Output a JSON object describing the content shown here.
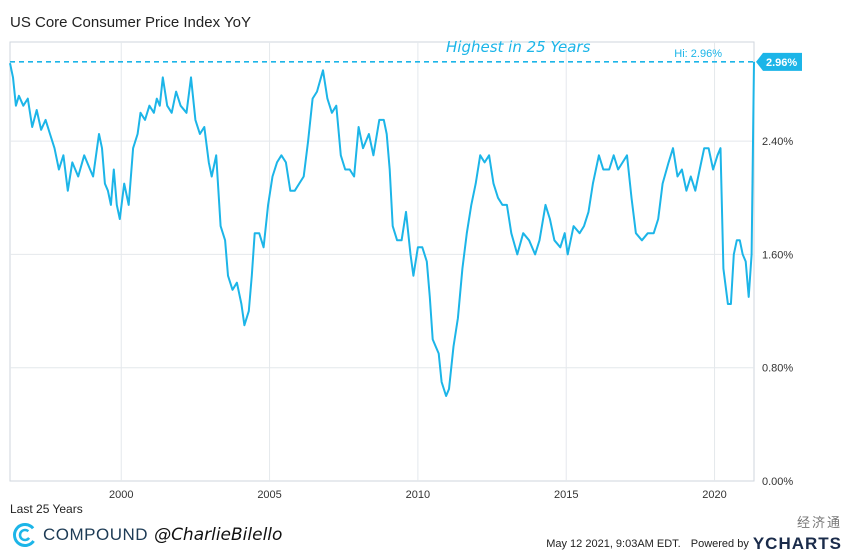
{
  "chart_data": {
    "type": "line",
    "title": "US Core Consumer Price Index YoY",
    "period_label": "Last 25 Years",
    "annotation": "Highest in 25 Years",
    "hi_label": "Hi: 2.96%",
    "last_value_label": "2.96%",
    "hi_value": 2.96,
    "line_color": "#1cb5e8",
    "xlim": [
      1996.25,
      2021.33
    ],
    "ylim": [
      0,
      3.1
    ],
    "x_ticks": [
      2000,
      2005,
      2010,
      2015,
      2020
    ],
    "y_ticks": [
      0,
      0.8,
      1.6,
      2.4
    ],
    "y_tick_labels": [
      "0.00%",
      "0.80%",
      "1.60%",
      "2.40%"
    ],
    "series": [
      {
        "values": [
          [
            1996.25,
            2.95
          ],
          [
            1996.35,
            2.85
          ],
          [
            1996.45,
            2.65
          ],
          [
            1996.55,
            2.72
          ],
          [
            1996.7,
            2.65
          ],
          [
            1996.85,
            2.7
          ],
          [
            1997.0,
            2.5
          ],
          [
            1997.15,
            2.62
          ],
          [
            1997.3,
            2.48
          ],
          [
            1997.45,
            2.55
          ],
          [
            1997.6,
            2.45
          ],
          [
            1997.75,
            2.35
          ],
          [
            1997.9,
            2.2
          ],
          [
            1998.05,
            2.3
          ],
          [
            1998.2,
            2.05
          ],
          [
            1998.35,
            2.25
          ],
          [
            1998.55,
            2.15
          ],
          [
            1998.75,
            2.3
          ],
          [
            1998.95,
            2.2
          ],
          [
            1999.05,
            2.15
          ],
          [
            1999.25,
            2.45
          ],
          [
            1999.35,
            2.35
          ],
          [
            1999.45,
            2.1
          ],
          [
            1999.55,
            2.05
          ],
          [
            1999.65,
            1.95
          ],
          [
            1999.75,
            2.2
          ],
          [
            1999.85,
            1.95
          ],
          [
            1999.95,
            1.85
          ],
          [
            2000.1,
            2.1
          ],
          [
            2000.25,
            1.95
          ],
          [
            2000.4,
            2.35
          ],
          [
            2000.55,
            2.45
          ],
          [
            2000.65,
            2.6
          ],
          [
            2000.8,
            2.55
          ],
          [
            2000.95,
            2.65
          ],
          [
            2001.1,
            2.6
          ],
          [
            2001.2,
            2.7
          ],
          [
            2001.3,
            2.65
          ],
          [
            2001.4,
            2.85
          ],
          [
            2001.55,
            2.65
          ],
          [
            2001.7,
            2.6
          ],
          [
            2001.85,
            2.75
          ],
          [
            2002.0,
            2.65
          ],
          [
            2002.2,
            2.6
          ],
          [
            2002.35,
            2.85
          ],
          [
            2002.5,
            2.55
          ],
          [
            2002.65,
            2.45
          ],
          [
            2002.8,
            2.5
          ],
          [
            2002.95,
            2.25
          ],
          [
            2003.05,
            2.15
          ],
          [
            2003.2,
            2.3
          ],
          [
            2003.35,
            1.8
          ],
          [
            2003.5,
            1.7
          ],
          [
            2003.6,
            1.45
          ],
          [
            2003.75,
            1.35
          ],
          [
            2003.9,
            1.4
          ],
          [
            2004.05,
            1.25
          ],
          [
            2004.15,
            1.1
          ],
          [
            2004.3,
            1.2
          ],
          [
            2004.4,
            1.45
          ],
          [
            2004.5,
            1.75
          ],
          [
            2004.65,
            1.75
          ],
          [
            2004.8,
            1.65
          ],
          [
            2004.95,
            1.95
          ],
          [
            2005.1,
            2.15
          ],
          [
            2005.25,
            2.25
          ],
          [
            2005.4,
            2.3
          ],
          [
            2005.55,
            2.25
          ],
          [
            2005.7,
            2.05
          ],
          [
            2005.85,
            2.05
          ],
          [
            2006.0,
            2.1
          ],
          [
            2006.15,
            2.15
          ],
          [
            2006.3,
            2.4
          ],
          [
            2006.45,
            2.7
          ],
          [
            2006.6,
            2.75
          ],
          [
            2006.8,
            2.9
          ],
          [
            2006.95,
            2.7
          ],
          [
            2007.1,
            2.6
          ],
          [
            2007.25,
            2.65
          ],
          [
            2007.4,
            2.3
          ],
          [
            2007.55,
            2.2
          ],
          [
            2007.7,
            2.2
          ],
          [
            2007.85,
            2.15
          ],
          [
            2008.0,
            2.5
          ],
          [
            2008.15,
            2.35
          ],
          [
            2008.35,
            2.45
          ],
          [
            2008.5,
            2.3
          ],
          [
            2008.7,
            2.55
          ],
          [
            2008.85,
            2.55
          ],
          [
            2008.95,
            2.45
          ],
          [
            2009.05,
            2.2
          ],
          [
            2009.15,
            1.8
          ],
          [
            2009.3,
            1.7
          ],
          [
            2009.45,
            1.7
          ],
          [
            2009.6,
            1.9
          ],
          [
            2009.75,
            1.6
          ],
          [
            2009.85,
            1.45
          ],
          [
            2010.0,
            1.65
          ],
          [
            2010.15,
            1.65
          ],
          [
            2010.3,
            1.55
          ],
          [
            2010.4,
            1.3
          ],
          [
            2010.5,
            1.0
          ],
          [
            2010.6,
            0.95
          ],
          [
            2010.7,
            0.9
          ],
          [
            2010.8,
            0.7
          ],
          [
            2010.95,
            0.6
          ],
          [
            2011.05,
            0.65
          ],
          [
            2011.2,
            0.95
          ],
          [
            2011.35,
            1.15
          ],
          [
            2011.5,
            1.5
          ],
          [
            2011.65,
            1.75
          ],
          [
            2011.8,
            1.95
          ],
          [
            2011.95,
            2.1
          ],
          [
            2012.1,
            2.3
          ],
          [
            2012.25,
            2.25
          ],
          [
            2012.4,
            2.3
          ],
          [
            2012.55,
            2.1
          ],
          [
            2012.7,
            2.0
          ],
          [
            2012.85,
            1.95
          ],
          [
            2013.0,
            1.95
          ],
          [
            2013.15,
            1.75
          ],
          [
            2013.35,
            1.6
          ],
          [
            2013.55,
            1.75
          ],
          [
            2013.75,
            1.7
          ],
          [
            2013.95,
            1.6
          ],
          [
            2014.1,
            1.7
          ],
          [
            2014.3,
            1.95
          ],
          [
            2014.45,
            1.85
          ],
          [
            2014.6,
            1.7
          ],
          [
            2014.8,
            1.65
          ],
          [
            2014.95,
            1.75
          ],
          [
            2015.05,
            1.6
          ],
          [
            2015.25,
            1.8
          ],
          [
            2015.45,
            1.75
          ],
          [
            2015.6,
            1.8
          ],
          [
            2015.75,
            1.9
          ],
          [
            2015.9,
            2.1
          ],
          [
            2016.1,
            2.3
          ],
          [
            2016.25,
            2.2
          ],
          [
            2016.45,
            2.2
          ],
          [
            2016.6,
            2.3
          ],
          [
            2016.75,
            2.2
          ],
          [
            2016.9,
            2.25
          ],
          [
            2017.05,
            2.3
          ],
          [
            2017.2,
            2.0
          ],
          [
            2017.35,
            1.75
          ],
          [
            2017.55,
            1.7
          ],
          [
            2017.75,
            1.75
          ],
          [
            2017.95,
            1.75
          ],
          [
            2018.1,
            1.85
          ],
          [
            2018.25,
            2.1
          ],
          [
            2018.45,
            2.25
          ],
          [
            2018.6,
            2.35
          ],
          [
            2018.75,
            2.15
          ],
          [
            2018.9,
            2.2
          ],
          [
            2019.05,
            2.05
          ],
          [
            2019.2,
            2.15
          ],
          [
            2019.35,
            2.05
          ],
          [
            2019.5,
            2.2
          ],
          [
            2019.65,
            2.35
          ],
          [
            2019.8,
            2.35
          ],
          [
            2019.95,
            2.2
          ],
          [
            2020.1,
            2.3
          ],
          [
            2020.2,
            2.35
          ],
          [
            2020.3,
            1.5
          ],
          [
            2020.45,
            1.25
          ],
          [
            2020.55,
            1.25
          ],
          [
            2020.65,
            1.6
          ],
          [
            2020.75,
            1.7
          ],
          [
            2020.85,
            1.7
          ],
          [
            2020.95,
            1.6
          ],
          [
            2021.05,
            1.55
          ],
          [
            2021.15,
            1.3
          ],
          [
            2021.25,
            1.6
          ],
          [
            2021.33,
            2.96
          ]
        ]
      }
    ]
  },
  "branding": {
    "company": "COMPOUND",
    "handle": "@CharlieBilello"
  },
  "footer": {
    "timestamp": "May 12 2021, 9:03AM EDT.",
    "powered_by": "Powered by",
    "provider": "YCHARTS"
  },
  "watermark": "经济通"
}
